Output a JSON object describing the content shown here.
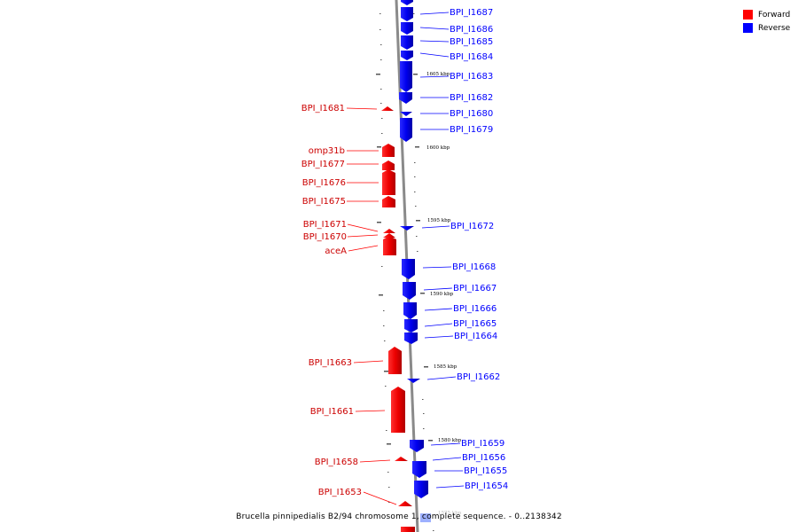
{
  "legend": {
    "forward_label": "Forward",
    "reverse_label": "Reverse",
    "forward_color": "#ff0000",
    "reverse_color": "#0000ff"
  },
  "caption": "Brucella pinnipedialis B2/94 chromosome 1, complete sequence. - 0..2138342",
  "scale_labels": [
    "1605 kbp",
    "1600 kbp",
    "1595 kbp",
    "1590 kbp",
    "1585 kbp",
    "1580 kbp",
    "1575 kbp"
  ],
  "genes": {
    "reverse": [
      "BPI_I1687",
      "BPI_I1686",
      "BPI_I1685",
      "BPI_I1684",
      "BPI_I1683",
      "BPI_I1682",
      "BPI_I1680",
      "BPI_I1679",
      "BPI_I1672",
      "BPI_I1668",
      "BPI_I1667",
      "BPI_I1666",
      "BPI_I1665",
      "BPI_I1664",
      "BPI_I1662",
      "BPI_I1659",
      "BPI_I1656",
      "BPI_I1655",
      "BPI_I1654"
    ],
    "forward": [
      "BPI_I1681",
      "omp31b",
      "BPI_I1677",
      "BPI_I1676",
      "BPI_I1675",
      "BPI_I1671",
      "BPI_I1670",
      "aceA",
      "BPI_I1663",
      "BPI_I1661",
      "BPI_I1658",
      "BPI_I1653"
    ]
  }
}
